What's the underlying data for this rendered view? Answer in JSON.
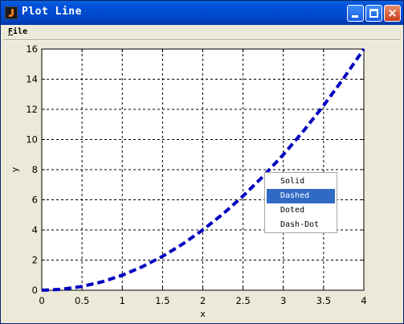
{
  "window": {
    "title": "Plot Line",
    "buttons": {
      "minimize": "minimize",
      "maximize": "maximize",
      "close": "×"
    }
  },
  "menubar": {
    "file_hotkey": "F",
    "file_rest": "ile"
  },
  "chart_data": {
    "type": "line",
    "title": "",
    "xlabel": "x",
    "ylabel": "y",
    "xlim": [
      0,
      4
    ],
    "ylim": [
      0,
      16
    ],
    "grid": true,
    "x_ticks": [
      "0",
      "0.5",
      "1",
      "1.5",
      "2",
      "2.5",
      "3",
      "3.5",
      "4"
    ],
    "y_ticks": [
      "0",
      "2",
      "4",
      "6",
      "8",
      "10",
      "12",
      "14",
      "16"
    ],
    "series": [
      {
        "line_style": "dashed",
        "color": "#0000c0",
        "x": [
          0,
          0.25,
          0.5,
          0.75,
          1,
          1.25,
          1.5,
          1.75,
          2,
          2.25,
          2.5,
          2.75,
          3,
          3.25,
          3.5,
          3.75,
          4
        ],
        "y": [
          0,
          0.0625,
          0.25,
          0.5625,
          1,
          1.5625,
          2.25,
          3.0625,
          4,
          5.0625,
          6.25,
          7.5625,
          9,
          10.5625,
          12.25,
          14.0625,
          16
        ]
      }
    ]
  },
  "context_menu": {
    "items": [
      "Solid",
      "Dashed",
      "Doted",
      "Dash-Dot"
    ],
    "selected": "Dashed"
  }
}
